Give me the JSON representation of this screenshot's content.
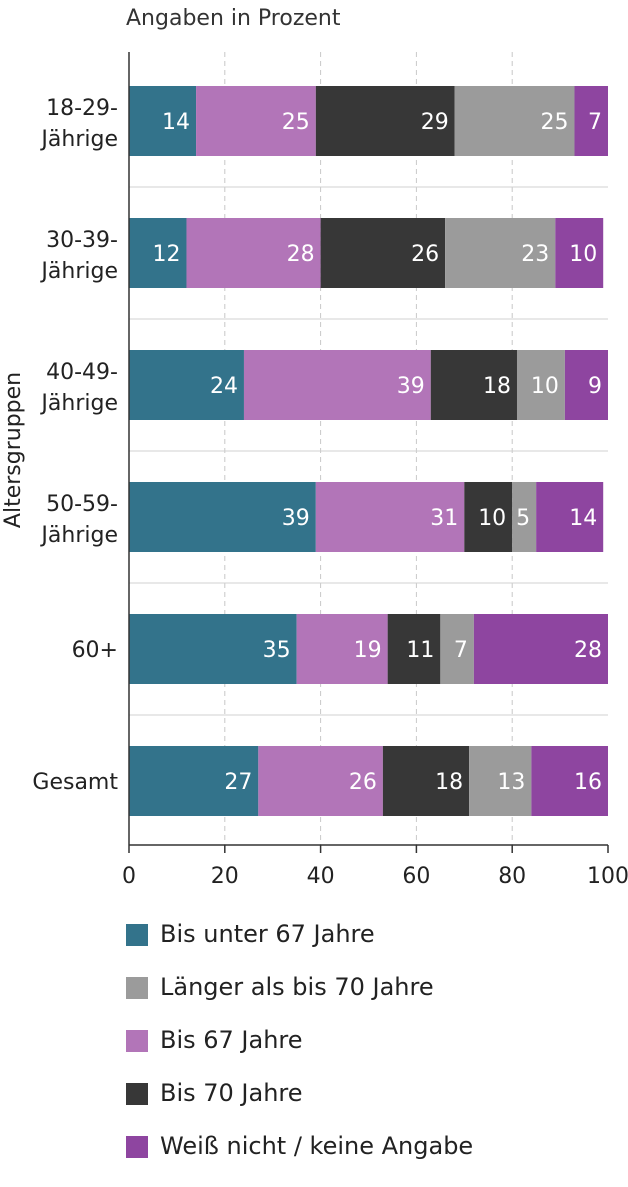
{
  "chart_data": {
    "type": "bar",
    "orientation": "horizontal",
    "stacked": true,
    "subtitle": "Angaben in Prozent",
    "ylabel": "Altersgruppen",
    "xlabel": "",
    "xlim": [
      0,
      100
    ],
    "xticks": [
      0,
      20,
      40,
      60,
      80,
      100
    ],
    "grid": true,
    "categories": [
      [
        "18-29-",
        "Jährige"
      ],
      [
        "30-39-",
        "Jährige"
      ],
      [
        "40-49-",
        "Jährige"
      ],
      [
        "50-59-",
        "Jährige"
      ],
      [
        "60+"
      ],
      [
        "Gesamt"
      ]
    ],
    "series": [
      {
        "name": "Bis unter 67 Jahre",
        "color": "#33738b",
        "values": [
          14,
          12,
          24,
          39,
          35,
          27
        ]
      },
      {
        "name": "Bis 67 Jahre",
        "color": "#b275b8",
        "values": [
          25,
          28,
          39,
          31,
          19,
          26
        ]
      },
      {
        "name": "Bis 70 Jahre",
        "color": "#373737",
        "values": [
          29,
          26,
          18,
          10,
          11,
          18
        ]
      },
      {
        "name": "Länger als bis 70 Jahre",
        "color": "#9b9b9b",
        "values": [
          25,
          23,
          10,
          5,
          7,
          13
        ]
      },
      {
        "name": "Weiß nicht / keine Angabe",
        "color": "#8e45a0",
        "values": [
          7,
          10,
          9,
          14,
          28,
          16
        ]
      }
    ],
    "legend_position": "bottom"
  },
  "legend": [
    {
      "label": "Bis unter 67 Jahre",
      "color": "#33738b"
    },
    {
      "label": "Länger als bis 70 Jahre",
      "color": "#9b9b9b"
    },
    {
      "label": "Bis 67 Jahre",
      "color": "#b275b8"
    },
    {
      "label": "Bis 70 Jahre",
      "color": "#373737"
    },
    {
      "label": "Weiß nicht / keine Angabe",
      "color": "#8e45a0"
    }
  ]
}
